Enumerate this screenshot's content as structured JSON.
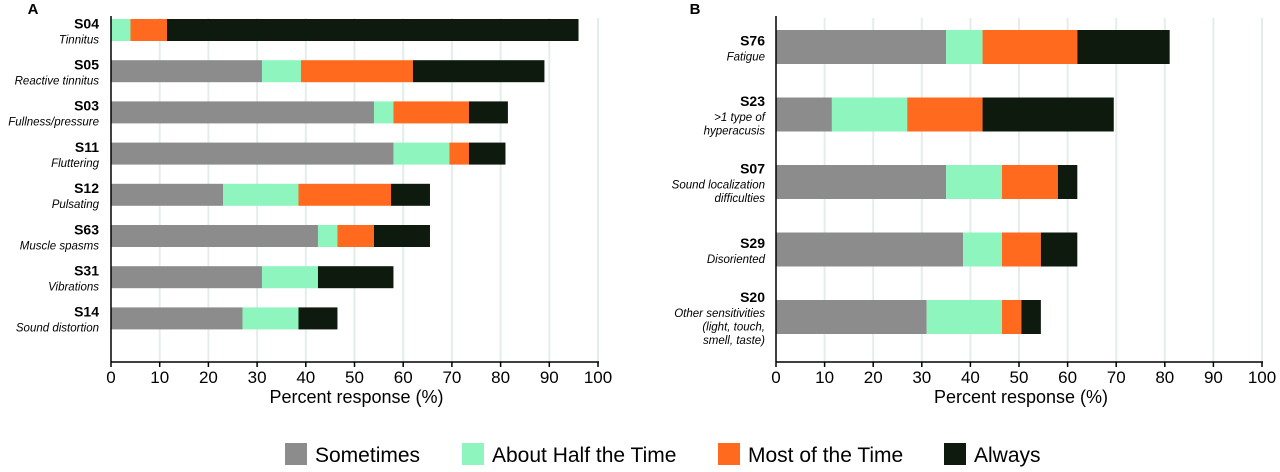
{
  "legend": {
    "items": [
      {
        "label": "Sometimes",
        "color": "#8c8c8c"
      },
      {
        "label": "About Half the Time",
        "color": "#8ef5be"
      },
      {
        "label": "Most of the Time",
        "color": "#ff6a1f"
      },
      {
        "label": "Always",
        "color": "#0d1a0d"
      }
    ]
  },
  "chart_data": [
    {
      "type": "bar",
      "orientation": "horizontal",
      "stacked": true,
      "panel_label": "A",
      "xlabel": "Percent response (%)",
      "xlim": [
        0,
        100
      ],
      "xticks": [
        0,
        10,
        20,
        30,
        40,
        50,
        60,
        70,
        80,
        90,
        100
      ],
      "grid": "vertical",
      "categories": [
        {
          "code": "S04",
          "desc": [
            "Tinnitus"
          ]
        },
        {
          "code": "S05",
          "desc": [
            "Reactive tinnitus"
          ]
        },
        {
          "code": "S03",
          "desc": [
            "Fullness/pressure"
          ]
        },
        {
          "code": "S11",
          "desc": [
            "Fluttering"
          ]
        },
        {
          "code": "S12",
          "desc": [
            "Pulsating"
          ]
        },
        {
          "code": "S63",
          "desc": [
            "Muscle spasms"
          ]
        },
        {
          "code": "S31",
          "desc": [
            "Vibrations"
          ]
        },
        {
          "code": "S14",
          "desc": [
            "Sound distortion"
          ]
        }
      ],
      "series": [
        {
          "name": "Sometimes",
          "values": [
            0,
            31,
            54,
            58,
            23,
            42.5,
            31,
            27
          ]
        },
        {
          "name": "About Half the Time",
          "values": [
            4,
            8,
            4,
            11.5,
            15.5,
            4,
            11.5,
            11.5
          ]
        },
        {
          "name": "Most of the Time",
          "values": [
            7.5,
            23,
            15.5,
            4,
            19,
            7.5,
            0,
            0
          ]
        },
        {
          "name": "Always",
          "values": [
            84.5,
            27,
            8,
            7.5,
            8,
            11.5,
            15.5,
            8
          ]
        }
      ]
    },
    {
      "type": "bar",
      "orientation": "horizontal",
      "stacked": true,
      "panel_label": "B",
      "xlabel": "Percent response (%)",
      "xlim": [
        0,
        100
      ],
      "xticks": [
        0,
        10,
        20,
        30,
        40,
        50,
        60,
        70,
        80,
        90,
        100
      ],
      "grid": "vertical",
      "categories": [
        {
          "code": "S76",
          "desc": [
            "Fatigue"
          ]
        },
        {
          "code": "S23",
          "desc": [
            ">1 type of",
            "hyperacusis"
          ]
        },
        {
          "code": "S07",
          "desc": [
            "Sound localization",
            "difficulties"
          ]
        },
        {
          "code": "S29",
          "desc": [
            "Disoriented"
          ]
        },
        {
          "code": "S20",
          "desc": [
            "Other sensitivities",
            "(light, touch,",
            "smell, taste)"
          ]
        }
      ],
      "series": [
        {
          "name": "Sometimes",
          "values": [
            35,
            11.5,
            35,
            38.5,
            31
          ]
        },
        {
          "name": "About Half the Time",
          "values": [
            7.5,
            15.5,
            11.5,
            8,
            15.5
          ]
        },
        {
          "name": "Most of the Time",
          "values": [
            19.5,
            15.5,
            11.5,
            8,
            4
          ]
        },
        {
          "name": "Always",
          "values": [
            19,
            27,
            4,
            7.5,
            4
          ]
        }
      ]
    }
  ]
}
